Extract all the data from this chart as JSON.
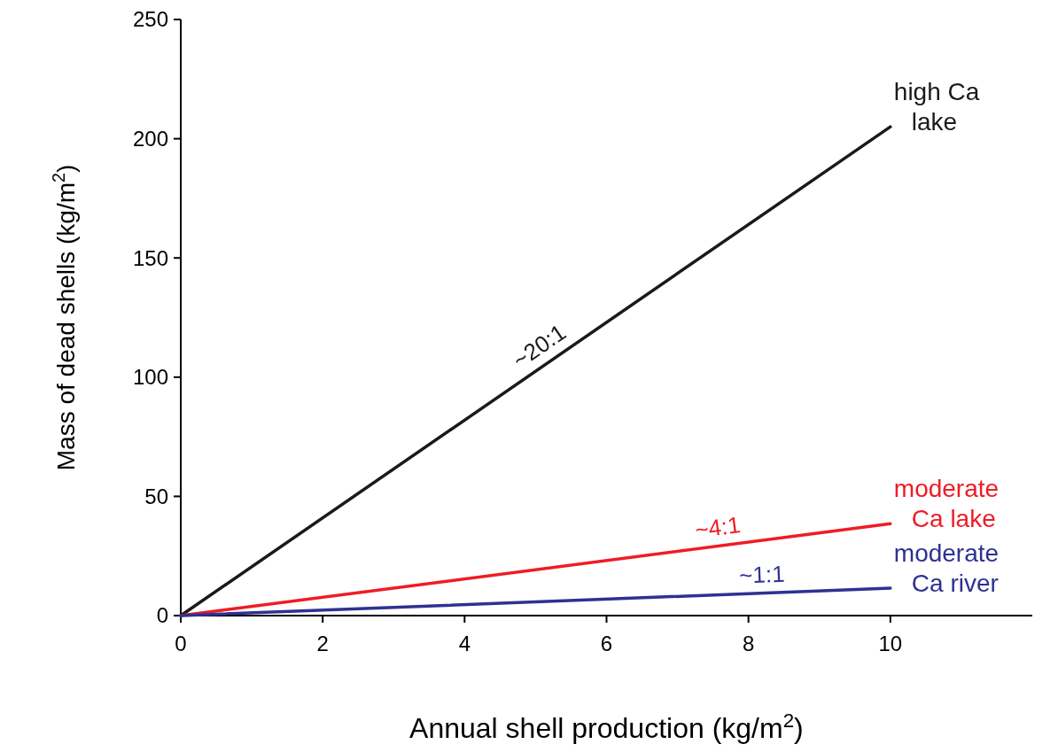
{
  "chart_data": {
    "type": "line",
    "xlabel": "Annual shell production (kg/m$^{2}$)",
    "ylabel": "Mass of dead shells (kg/m$^{2}$)",
    "x": [
      0,
      10
    ],
    "xlim": [
      0,
      12
    ],
    "xticks": [
      0,
      2,
      4,
      6,
      8,
      10
    ],
    "ylim": [
      0,
      250
    ],
    "yticks": [
      0,
      50,
      100,
      150,
      200,
      250
    ],
    "grid": false,
    "marker": "none",
    "line_style": "solid",
    "series": [
      {
        "name": "high Ca\nlake",
        "color": "#1a1a1a",
        "values": [
          0,
          205
        ]
      },
      {
        "name": "moderate\nCa lake",
        "color": "#ee1c25",
        "values": [
          0,
          38.5
        ]
      },
      {
        "name": "moderate\nCa river",
        "color": "#2e3192",
        "values": [
          0,
          11.5
        ]
      }
    ],
    "annotations": [
      {
        "text": "~20:1",
        "x": 5.2,
        "y": 106.6
      },
      {
        "text": "~4:1",
        "x": 7.6,
        "y": 29.3
      },
      {
        "text": "~1:1",
        "x": 8.2,
        "y": 9.4
      }
    ]
  }
}
